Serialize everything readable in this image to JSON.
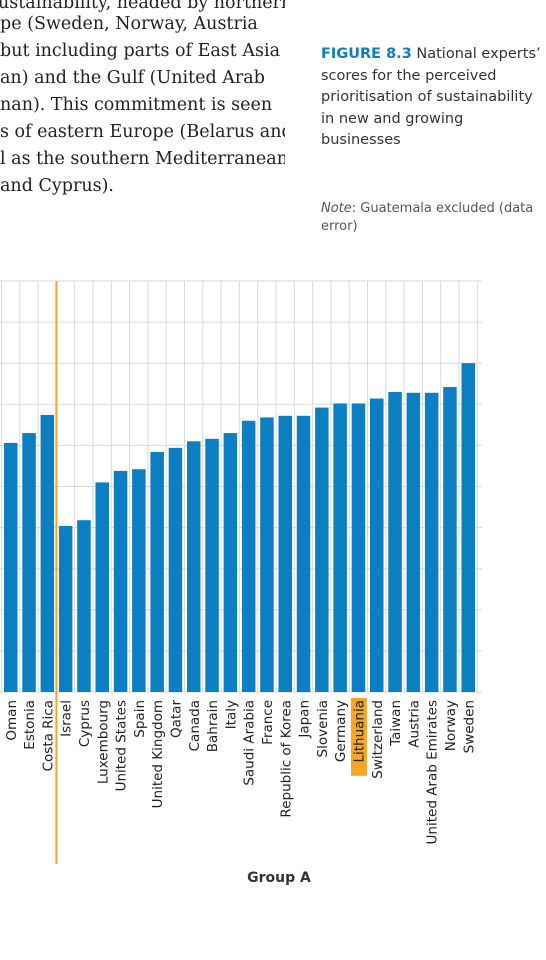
{
  "body_text": {
    "lines": [
      "ustainability, headed by northern",
      "pe (Sweden, Norway, Austria",
      "but including parts of East Asia",
      "an) and the Gulf (United Arab",
      "nan). This commitment is seen",
      "s of eastern Europe (Belarus and",
      "l as the southern Mediterranean",
      "and Cyprus)."
    ]
  },
  "figure": {
    "label": "FIGURE 8.3",
    "title": "National experts’ scores for the perceived prioritisation of sustainability in new and growing businesses",
    "note_label": "Note",
    "note_text": ": Guatemala excluded (data error)"
  },
  "chart_data": {
    "type": "bar",
    "group_label": "Group A",
    "grid": true,
    "ylim": [
      2.0,
      7.0
    ],
    "categories": [
      "Oman",
      "Estonia",
      "Costa Rica",
      "Israel",
      "Cyprus",
      "Luxembourg",
      "United States",
      "Spain",
      "United Kingdom",
      "Qatar",
      "Canada",
      "Bahrain",
      "Italy",
      "Saudi Arabia",
      "France",
      "Republic of Korea",
      "Japan",
      "Slovenia",
      "Germany",
      "Lithuania",
      "Switzerland",
      "Taiwan",
      "Austria",
      "United Arab Emirates",
      "Norway",
      "Sweden"
    ],
    "values": [
      5.03,
      5.15,
      5.37,
      4.02,
      4.09,
      4.55,
      4.69,
      4.71,
      4.92,
      4.97,
      5.05,
      5.08,
      5.15,
      5.3,
      5.34,
      5.36,
      5.36,
      5.46,
      5.51,
      5.51,
      5.57,
      5.65,
      5.64,
      5.64,
      5.71,
      6.0
    ],
    "highlight": "Lithuania",
    "separator_after": "Costa Rica",
    "colors": {
      "bar": "#0b7fc1",
      "highlight_bg": "#f5a623",
      "separator": "#f5a623",
      "grid": "#d9d9d9",
      "tick_text": "#222222"
    }
  }
}
